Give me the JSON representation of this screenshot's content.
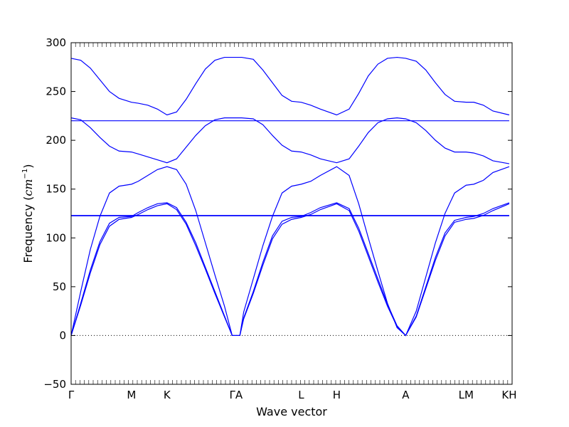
{
  "chart_data": {
    "type": "line",
    "xlabel": "Wave vector",
    "ylabel_main": "Frequency (",
    "ylabel_unit_base": "cm",
    "ylabel_unit_exp": "−1",
    "ylabel_close": ")",
    "ylim": [
      -50,
      300
    ],
    "xlim": [
      0,
      4.6
    ],
    "yticks": [
      -50,
      0,
      50,
      100,
      150,
      200,
      250,
      300
    ],
    "ytick_labels": [
      "−50",
      "0",
      "50",
      "100",
      "150",
      "200",
      "250",
      "300"
    ],
    "xticks": [
      {
        "x": 0.0,
        "label": "Γ"
      },
      {
        "x": 0.63,
        "label": "M"
      },
      {
        "x": 1.0,
        "label": "K"
      },
      {
        "x": 1.72,
        "label": "ΓA"
      },
      {
        "x": 2.4,
        "label": "L"
      },
      {
        "x": 2.77,
        "label": "H"
      },
      {
        "x": 3.49,
        "label": "A"
      },
      {
        "x": 4.12,
        "label": "LM"
      },
      {
        "x": 4.57,
        "label": "KH"
      }
    ],
    "zero_line": {
      "y": 0,
      "style": "dotted"
    },
    "line_color": "#0000ff",
    "series": [
      {
        "x": [
          0,
          0.1,
          0.2,
          0.3,
          0.4,
          0.5,
          0.63,
          0.7,
          0.8,
          0.9,
          1.0,
          1.1,
          1.2,
          1.3,
          1.4,
          1.5,
          1.6,
          1.72,
          1.78,
          1.9,
          2.0,
          2.1,
          2.2,
          2.3,
          2.4,
          2.5,
          2.6,
          2.77,
          2.9,
          3.0,
          3.1,
          3.2,
          3.3,
          3.4,
          3.49,
          3.6,
          3.7,
          3.8,
          3.9,
          4.0,
          4.12,
          4.2,
          4.3,
          4.4,
          4.57
        ],
        "y": [
          284,
          282,
          274,
          262,
          250,
          243,
          239,
          238,
          236,
          232,
          226,
          229,
          242,
          258,
          273,
          282,
          285,
          285,
          285,
          283,
          272,
          259,
          246,
          240,
          239,
          236,
          232,
          226,
          232,
          248,
          266,
          278,
          284,
          285,
          284,
          281,
          272,
          259,
          247,
          240,
          239,
          239,
          236,
          230,
          226
        ]
      },
      {
        "x": [
          0,
          4.57
        ],
        "y": [
          220,
          220
        ]
      },
      {
        "x": [
          0,
          0.1,
          0.2,
          0.3,
          0.4,
          0.5,
          0.63,
          0.7,
          0.8,
          0.9,
          1.0,
          1.1,
          1.2,
          1.3,
          1.4,
          1.5,
          1.6,
          1.72,
          1.78,
          1.9,
          2.0,
          2.1,
          2.2,
          2.3,
          2.4,
          2.5,
          2.6,
          2.77,
          2.9,
          3.0,
          3.1,
          3.2,
          3.3,
          3.4,
          3.49,
          3.6,
          3.7,
          3.8,
          3.9,
          4.0,
          4.12,
          4.2,
          4.3,
          4.4,
          4.57
        ],
        "y": [
          223,
          221,
          213,
          203,
          194,
          189,
          188,
          186,
          183,
          180,
          177,
          181,
          193,
          205,
          215,
          221,
          223,
          223,
          223,
          222,
          216,
          205,
          195,
          189,
          188,
          185,
          181,
          177,
          181,
          194,
          208,
          218,
          222,
          223,
          222,
          218,
          210,
          200,
          192,
          188,
          188,
          187,
          184,
          179,
          176
        ]
      },
      {
        "x": [
          0,
          0.1,
          0.2,
          0.3,
          0.4,
          0.5,
          0.63,
          0.7,
          0.8,
          0.9,
          1.0,
          1.1,
          1.2,
          1.3,
          1.4,
          1.5,
          1.6,
          1.68,
          1.76,
          1.8,
          1.9,
          2.0,
          2.1,
          2.2,
          2.3,
          2.4,
          2.5,
          2.6,
          2.77,
          2.9,
          3.0,
          3.1,
          3.2,
          3.3,
          3.4,
          3.49,
          3.6,
          3.7,
          3.8,
          3.9,
          4.0,
          4.12,
          4.2,
          4.3,
          4.4,
          4.57
        ],
        "y": [
          0,
          45,
          88,
          122,
          146,
          153,
          155,
          158,
          164,
          170,
          173,
          170,
          155,
          128,
          95,
          62,
          30,
          0,
          0,
          24,
          58,
          92,
          122,
          146,
          153,
          155,
          158,
          164,
          173,
          164,
          135,
          100,
          66,
          33,
          8,
          0,
          25,
          60,
          95,
          125,
          146,
          154,
          155,
          159,
          167,
          173
        ]
      },
      {
        "x": [
          0,
          0.1,
          0.2,
          0.3,
          0.4,
          0.5,
          0.63,
          0.7,
          0.8,
          0.9,
          1.0,
          1.1,
          1.2,
          1.3,
          1.4,
          1.5,
          1.6,
          1.68,
          1.76,
          1.8,
          1.9,
          2.0,
          2.1,
          2.2,
          2.3,
          2.4,
          2.5,
          2.6,
          2.77,
          2.9,
          3.0,
          3.1,
          3.2,
          3.3,
          3.4,
          3.49,
          3.6,
          3.7,
          3.8,
          3.9,
          4.0,
          4.12,
          4.2,
          4.3,
          4.4,
          4.57
        ],
        "y": [
          0,
          33,
          67,
          96,
          115,
          121,
          122,
          126,
          131,
          135,
          136,
          131,
          116,
          95,
          70,
          45,
          20,
          0,
          0,
          18,
          45,
          75,
          102,
          117,
          121,
          122,
          126,
          131,
          136,
          130,
          110,
          84,
          58,
          32,
          10,
          0,
          20,
          50,
          80,
          105,
          118,
          121,
          122,
          125,
          130,
          136
        ]
      },
      {
        "x": [
          0,
          0.1,
          0.2,
          0.3,
          0.4,
          0.5,
          0.63,
          0.7,
          0.8,
          0.9,
          1.0,
          1.1,
          1.2,
          1.3,
          1.4,
          1.5,
          1.6,
          1.68,
          1.76,
          1.8,
          1.9,
          2.0,
          2.1,
          2.2,
          2.3,
          2.4,
          2.5,
          2.6,
          2.77,
          2.9,
          3.0,
          3.1,
          3.2,
          3.3,
          3.4,
          3.49,
          3.6,
          3.7,
          3.8,
          3.9,
          4.0,
          4.12,
          4.2,
          4.3,
          4.4,
          4.57
        ],
        "y": [
          0,
          31,
          64,
          93,
          112,
          119,
          121,
          124,
          129,
          133,
          135,
          129,
          114,
          92,
          68,
          43,
          19,
          0,
          0,
          17,
          43,
          72,
          99,
          114,
          119,
          121,
          124,
          129,
          135,
          128,
          107,
          81,
          55,
          30,
          9,
          0,
          19,
          48,
          77,
          102,
          116,
          119,
          120,
          123,
          128,
          135
        ]
      },
      {
        "x": [
          0,
          4.57
        ],
        "y": [
          123,
          123
        ]
      },
      {
        "x": [
          0,
          4.57
        ],
        "y": [
          122.6,
          122.6
        ]
      }
    ]
  }
}
